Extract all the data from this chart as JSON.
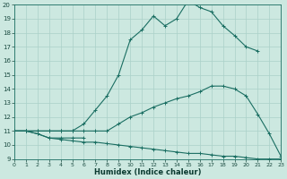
{
  "xlabel": "Humidex (Indice chaleur)",
  "background_color": "#cce8e0",
  "grid_color": "#aad0c8",
  "line_color": "#1a6e62",
  "xlim": [
    0,
    23
  ],
  "ylim": [
    9,
    20
  ],
  "xticks": [
    0,
    1,
    2,
    3,
    4,
    5,
    6,
    7,
    8,
    9,
    10,
    11,
    12,
    13,
    14,
    15,
    16,
    17,
    18,
    19,
    20,
    21,
    22,
    23
  ],
  "yticks": [
    9,
    10,
    11,
    12,
    13,
    14,
    15,
    16,
    17,
    18,
    19,
    20
  ],
  "lines": [
    {
      "x": [
        0,
        1,
        2,
        3,
        4,
        5,
        6,
        7,
        8,
        9,
        10,
        11,
        12,
        13,
        14,
        15,
        16,
        17,
        18,
        19,
        20,
        21
      ],
      "y": [
        11,
        11,
        11,
        11,
        11,
        11,
        11.5,
        12.5,
        13.5,
        15.0,
        17.5,
        18.2,
        19.2,
        18.5,
        19.0,
        20.3,
        19.8,
        19.5,
        18.5,
        17.8,
        17.0,
        16.7
      ]
    },
    {
      "x": [
        0,
        1,
        2,
        3,
        4,
        5,
        6,
        7,
        8,
        9,
        10,
        11,
        12,
        13,
        14,
        15,
        16,
        17,
        18,
        19,
        20,
        21,
        22,
        23
      ],
      "y": [
        11,
        11,
        11,
        11,
        11,
        11,
        11,
        11,
        11,
        11.5,
        12.0,
        12.3,
        12.7,
        13.0,
        13.3,
        13.5,
        13.8,
        14.2,
        14.2,
        14.0,
        13.5,
        12.2,
        10.8,
        9.2
      ]
    },
    {
      "x": [
        0,
        1,
        2,
        3,
        4,
        5,
        6,
        7,
        8,
        9,
        10,
        11,
        12,
        13,
        14,
        15,
        16,
        17,
        18,
        19,
        20,
        21,
        22,
        23
      ],
      "y": [
        11,
        11,
        10.8,
        10.5,
        10.4,
        10.3,
        10.2,
        10.2,
        10.1,
        10.0,
        9.9,
        9.8,
        9.7,
        9.6,
        9.5,
        9.4,
        9.4,
        9.3,
        9.2,
        9.2,
        9.1,
        9.0,
        9.0,
        9.0
      ]
    },
    {
      "x": [
        0,
        1,
        2,
        3,
        4,
        5,
        6
      ],
      "y": [
        11,
        11,
        10.8,
        10.5,
        10.5,
        10.5,
        10.5
      ]
    }
  ]
}
